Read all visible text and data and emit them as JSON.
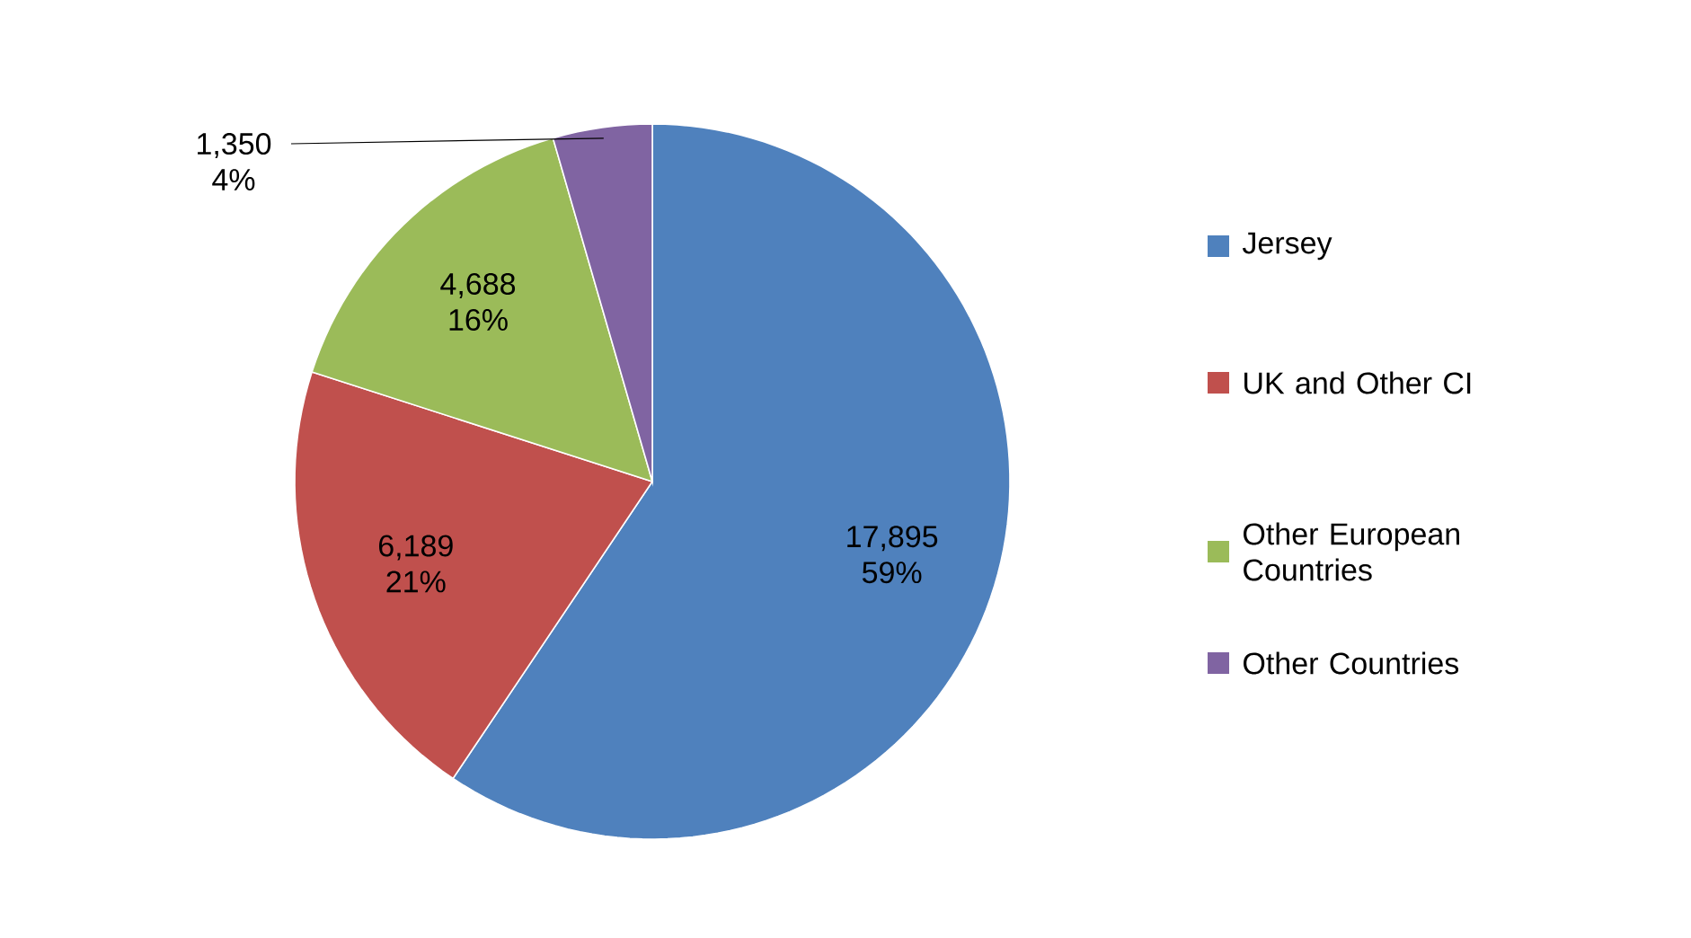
{
  "chart_data": {
    "type": "pie",
    "categories": [
      "Jersey",
      "UK and Other CI",
      "Other European Countries",
      "Other Countries"
    ],
    "values": [
      17895,
      6189,
      4688,
      1350
    ],
    "colors": [
      "#4f81bd",
      "#c0504d",
      "#9bbb59",
      "#8064a2"
    ],
    "value_labels": [
      "17,895 59%",
      "6,189 21%",
      "4,688 16%",
      "1,350 4%"
    ],
    "legend": "right"
  }
}
